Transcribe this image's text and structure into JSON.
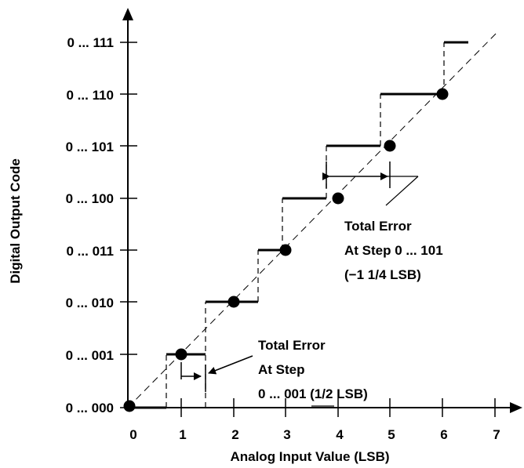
{
  "diagram": {
    "x_axis": {
      "title": "Analog Input Value (LSB)",
      "ticks": [
        "0",
        "1",
        "2",
        "3",
        "4",
        "5",
        "6",
        "7"
      ]
    },
    "y_axis": {
      "title": "Digital Output Code",
      "ticks": [
        "0 ... 000",
        "0 ... 001",
        "0 ... 010",
        "0 ... 011",
        "0 ... 100",
        "0 ... 101",
        "0 ... 110",
        "0 ... 111"
      ]
    },
    "annotation_top": {
      "line1": "Total Error",
      "line2": "At Step 0 ... 101",
      "line3": "(−1 1/4 LSB)"
    },
    "annotation_bottom": {
      "line1": "Total Error",
      "line2": "At Step",
      "line3": "0 ... 001 (1/2 LSB)"
    }
  }
}
